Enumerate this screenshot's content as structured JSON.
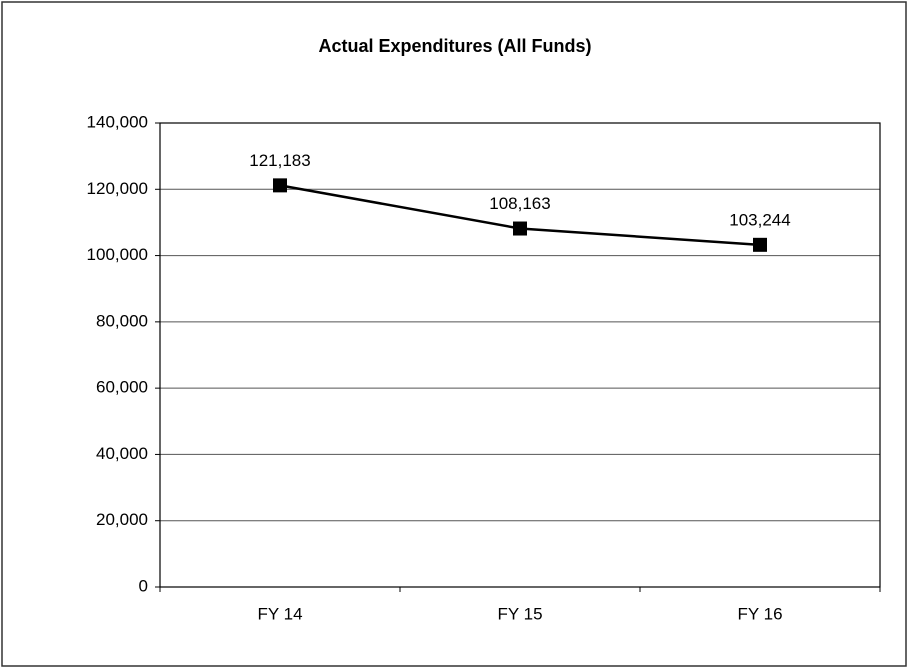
{
  "chart_data": {
    "type": "line",
    "title": "Actual Expenditures (All Funds)",
    "categories": [
      "FY 14",
      "FY 15",
      "FY 16"
    ],
    "values": [
      121183,
      108163,
      103244
    ],
    "value_labels": [
      "121,183",
      "108,163",
      "103,244"
    ],
    "color": "#000000",
    "ylim": [
      0,
      140000
    ],
    "yticks": [
      0,
      {
        "value": 20000,
        "label": "20,000"
      },
      {
        "value": 40000,
        "label": "40,000"
      },
      {
        "value": 60000,
        "label": "60,000"
      },
      {
        "value": 80000,
        "label": "80,000"
      },
      {
        "value": 100000,
        "label": "100,000"
      },
      {
        "value": 120000,
        "label": "120,000"
      },
      {
        "value": 140000,
        "label": "140,000"
      }
    ],
    "grid": true
  }
}
